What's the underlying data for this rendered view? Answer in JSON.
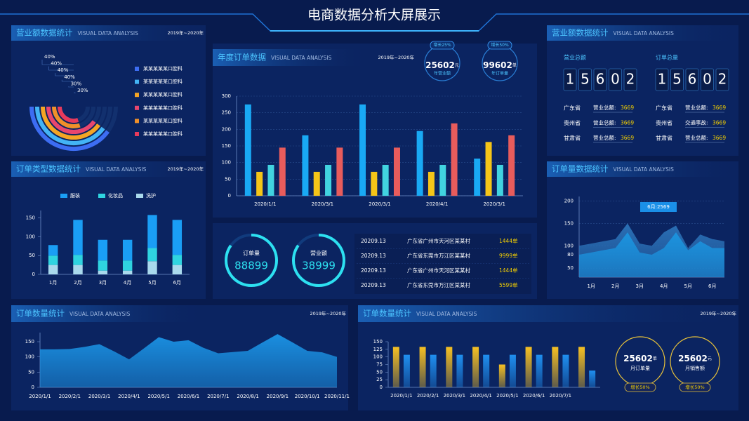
{
  "title": "电商数据分析大屏展示",
  "chart_data": [
    {
      "type": "radial",
      "title": "营业额数据统计",
      "subtitle": "VISUAL DATA ANALYSIS",
      "period": "2019年~2020年",
      "categories": [
        "某某某某某口腔科",
        "某某某某某口腔科",
        "某某某某某口腔科",
        "某某某某某口腔科",
        "某某某某某口腔科",
        "某某某某某口腔科"
      ],
      "values": [
        40,
        40,
        40,
        40,
        30,
        30
      ],
      "value_labels": [
        "40%",
        "40%",
        "40%",
        "40%",
        "30%",
        "30%"
      ],
      "colors": [
        "#3d6df2",
        "#43b4f5",
        "#f5a524",
        "#e8466e",
        "#f0902a",
        "#e83a5c"
      ]
    },
    {
      "type": "bar",
      "stacked": true,
      "title": "订单类型数据统计",
      "subtitle": "VISUAL DATA ANALYSIS",
      "period": "2019年~2020年",
      "categories": [
        "1月",
        "2月",
        "3月",
        "4月",
        "5月",
        "6月"
      ],
      "series": [
        {
          "name": "服装",
          "color": "#1a9ef5",
          "values": [
            28,
            93,
            55,
            55,
            88,
            93
          ]
        },
        {
          "name": "化妆品",
          "color": "#2fd4e0",
          "values": [
            25,
            27,
            27,
            27,
            35,
            27
          ]
        },
        {
          "name": "洗护",
          "color": "#a9d9ec",
          "values": [
            25,
            25,
            10,
            10,
            35,
            25
          ]
        }
      ],
      "ylim": [
        0,
        170
      ],
      "yticks": [
        0,
        50,
        100,
        150
      ],
      "legend": "top"
    },
    {
      "type": "area",
      "title": "订单数量统计",
      "subtitle": "VISUAL DATA ANALYSIS",
      "period": "2019年~2020年",
      "categories": [
        "2020/1/1",
        null,
        "2020/2/1",
        null,
        "2020/3/1",
        null,
        "2020/4/1",
        null,
        "2020/5/1",
        null,
        "2020/6/1",
        null,
        "2020/7/1",
        null,
        "2020/8/1",
        null,
        "2020/9/1",
        null,
        "2020/10/1",
        null,
        "2020/11/1"
      ],
      "values": [
        125,
        125,
        126,
        133,
        142,
        118,
        92,
        128,
        165,
        150,
        155,
        130,
        112,
        116,
        120,
        148,
        175,
        148,
        120,
        115,
        100
      ],
      "color": "#1a8fe0",
      "ylim": [
        0,
        180
      ],
      "yticks": [
        0,
        50,
        100,
        150
      ]
    },
    {
      "type": "bar",
      "title": "年度订单数据",
      "subtitle": "VISUAL DATA ANALYSIS",
      "period": "2019年~2020年",
      "categories": [
        "2020/1/1",
        "2020/3/1",
        "2020/3/1",
        "2020/4/1",
        "2020/3/1"
      ],
      "series": [
        {
          "color": "#19a9f4",
          "values": [
            275,
            182,
            275,
            195,
            112
          ]
        },
        {
          "color": "#f5c518",
          "values": [
            72,
            72,
            72,
            72,
            162
          ]
        },
        {
          "color": "#41d3e0",
          "values": [
            93,
            93,
            93,
            93,
            93
          ]
        },
        {
          "color": "#e85c5c",
          "values": [
            145,
            145,
            145,
            218,
            182
          ]
        }
      ],
      "ylim": [
        0,
        300
      ],
      "yticks": [
        0,
        50,
        100,
        150,
        200,
        250,
        300
      ],
      "grid": true
    },
    {
      "type": "bar",
      "gradient": true,
      "title": "订单数量统计",
      "subtitle": "VISUAL DATA ANALYSIS",
      "period": "2019年~2020年",
      "categories": [
        "2020/1/1",
        "2020/2/1",
        "2020/3/1",
        "2020/4/1",
        "2020/5/1",
        "2020/6/1",
        "2020/7/1",
        null
      ],
      "series": [
        {
          "color": "#f5c023",
          "values": [
            133,
            133,
            133,
            133,
            75,
            133,
            133,
            133
          ]
        },
        {
          "color": "#1f8ff0",
          "values": [
            107,
            107,
            107,
            107,
            107,
            107,
            107,
            55
          ]
        }
      ],
      "ylim": [
        0,
        150
      ],
      "yticks": [
        0,
        25,
        50,
        75,
        100,
        125,
        150
      ]
    },
    {
      "type": "area",
      "title": "订单量数据统计",
      "subtitle": "VISUAL DATA ANALYSIS",
      "categories": [
        null,
        "1月",
        null,
        "2月",
        null,
        "3月",
        null,
        "4月",
        null,
        "5月",
        null,
        "6月",
        null
      ],
      "series": [
        {
          "color": "#2a6fb5",
          "values": [
            100,
            105,
            110,
            115,
            150,
            105,
            100,
            130,
            145,
            95,
            125,
            115,
            110
          ]
        },
        {
          "color": "#1b92dd",
          "values": [
            80,
            85,
            90,
            95,
            130,
            85,
            80,
            95,
            130,
            90,
            110,
            95,
            95
          ]
        }
      ],
      "ylim": [
        30,
        210
      ],
      "yticks": [
        50,
        80,
        100,
        150,
        200
      ],
      "grid": true,
      "annotation": "6月:2569"
    }
  ],
  "annual_kpis": [
    {
      "badge": "增长25%",
      "value": "25602",
      "unit": "元",
      "label": "年营业额"
    },
    {
      "badge": "增长50%",
      "value": "99602",
      "unit": "单",
      "label": "年订单量"
    }
  ],
  "gauges": [
    {
      "label": "订单量",
      "value": "88899"
    },
    {
      "label": "营业额",
      "value": "38999"
    }
  ],
  "orders_table": {
    "rows": [
      [
        "20209.13",
        "广东省广州市天河区某某村",
        "1444单"
      ],
      [
        "20209.13",
        "广东省东莞市万江区某某村",
        "9999单"
      ],
      [
        "20209.13",
        "广东省广州市天河区某某村",
        "1444单"
      ],
      [
        "20209.13",
        "广东省东莞市万江区某某村",
        "5599单"
      ]
    ]
  },
  "monthly_kpis": [
    {
      "value": "25602",
      "unit": "单",
      "label": "月订单量",
      "badge": "增长50%"
    },
    {
      "value": "25602",
      "unit": "元",
      "label": "月销售额",
      "badge": "增长50%"
    }
  ],
  "sales_panel": {
    "title": "营业额数据统计",
    "subtitle": "VISUAL DATA ANALYSIS",
    "totals": [
      {
        "label": "营业总额",
        "digits": [
          "1",
          "5",
          "6",
          "0",
          "2"
        ]
      },
      {
        "label": "订单总量",
        "digits": [
          "1",
          "5",
          "6",
          "0",
          "2"
        ]
      }
    ],
    "columns": [
      [
        {
          "region": "广东省",
          "label": "营业总额:",
          "value": "3669"
        },
        {
          "region": "贵州省",
          "label": "营业总额:",
          "value": "3669"
        },
        {
          "region": "甘肃省",
          "label": "营业总额:",
          "value": "3669"
        }
      ],
      [
        {
          "region": "广东省",
          "label": "营业总额:",
          "value": "3669"
        },
        {
          "region": "贵州省",
          "label": "交通事故:",
          "value": "3669"
        },
        {
          "region": "甘肃省",
          "label": "营业总额:",
          "value": "3669"
        }
      ]
    ]
  }
}
